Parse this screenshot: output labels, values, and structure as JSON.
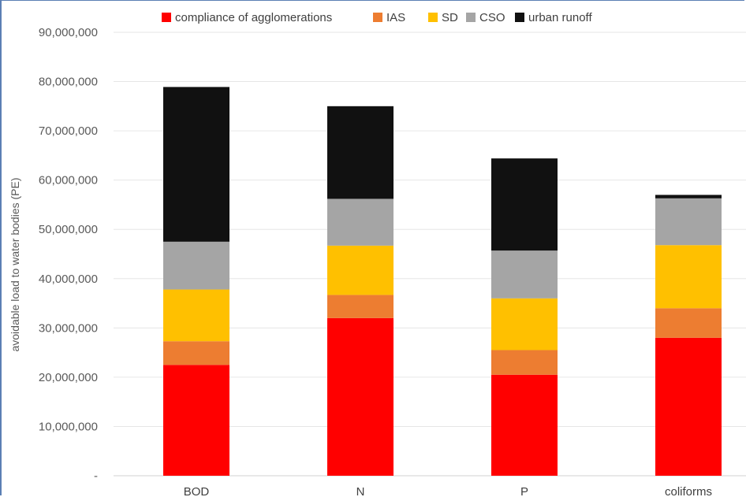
{
  "chart_data": {
    "type": "bar",
    "stacked": true,
    "categories": [
      "BOD",
      "N",
      "P",
      "coliforms"
    ],
    "ylabel": "avoidable load to water bodies (PE)",
    "xlabel": "",
    "ylim": [
      0,
      90000000
    ],
    "y_ticks": [
      {
        "value": 0,
        "label": "-"
      },
      {
        "value": 10000000,
        "label": "10,000,000"
      },
      {
        "value": 20000000,
        "label": "20,000,000"
      },
      {
        "value": 30000000,
        "label": "30,000,000"
      },
      {
        "value": 40000000,
        "label": "40,000,000"
      },
      {
        "value": 50000000,
        "label": "50,000,000"
      },
      {
        "value": 60000000,
        "label": "60,000,000"
      },
      {
        "value": 70000000,
        "label": "70,000,000"
      },
      {
        "value": 80000000,
        "label": "80,000,000"
      },
      {
        "value": 90000000,
        "label": "90,000,000"
      }
    ],
    "grid": true,
    "legend_position": "top",
    "series": [
      {
        "name": "compliance of agglomerations",
        "color": "#ff0000",
        "values": [
          22500000,
          32000000,
          20500000,
          28000000
        ]
      },
      {
        "name": "IAS",
        "color": "#ed7d31",
        "values": [
          4800000,
          4700000,
          5000000,
          6000000
        ]
      },
      {
        "name": "SD",
        "color": "#ffc000",
        "values": [
          10500000,
          10000000,
          10500000,
          12800000
        ]
      },
      {
        "name": "CSO",
        "color": "#a5a5a5",
        "values": [
          9700000,
          9500000,
          9700000,
          9500000
        ]
      },
      {
        "name": "urban runoff",
        "color": "#111111",
        "values": [
          31400000,
          18800000,
          18700000,
          700000
        ]
      }
    ]
  }
}
